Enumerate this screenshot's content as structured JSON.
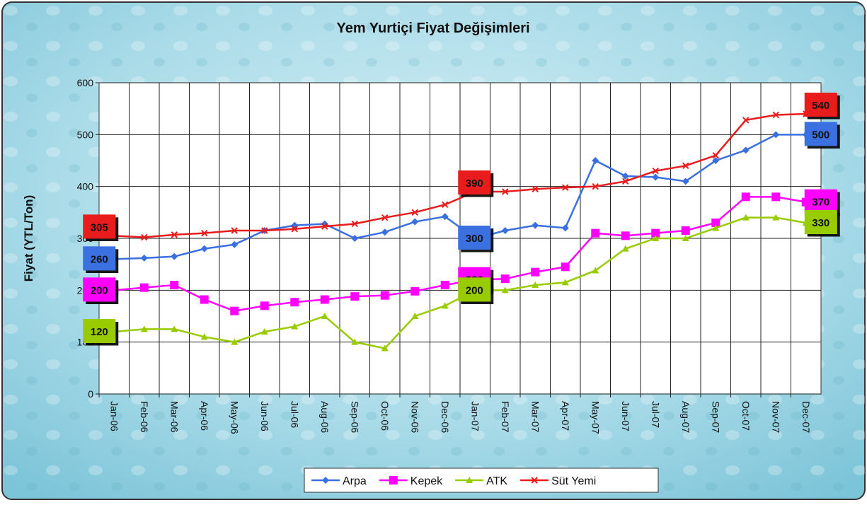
{
  "chart_data": {
    "type": "line",
    "title": "Yem Yurtiçi Fiyat Değişimleri",
    "y_label": "Fiyat (YTL/Ton)",
    "categories": [
      "Jan-06",
      "Feb-06",
      "Mar-06",
      "Apr-06",
      "May-06",
      "Jun-06",
      "Jul-06",
      "Aug-06",
      "Sep-06",
      "Oct-06",
      "Nov-06",
      "Dec-06",
      "Jan-07",
      "Feb-07",
      "Mar-07",
      "Apr-07",
      "May-07",
      "Jun-07",
      "Jul-07",
      "Aug-07",
      "Sep-07",
      "Oct-07",
      "Nov-07",
      "Dec-07"
    ],
    "series": [
      {
        "name": "Arpa",
        "color": "#3a6fe0",
        "marker": "diamond",
        "values": [
          260,
          262,
          265,
          280,
          288,
          315,
          325,
          328,
          300,
          312,
          332,
          342,
          300,
          315,
          325,
          320,
          450,
          420,
          418,
          410,
          450,
          470,
          500,
          500
        ]
      },
      {
        "name": "Kepek",
        "color": "#ff00ff",
        "marker": "square",
        "values": [
          200,
          205,
          210,
          182,
          160,
          170,
          177,
          182,
          188,
          190,
          198,
          210,
          220,
          222,
          235,
          245,
          310,
          305,
          310,
          315,
          330,
          380,
          380,
          370
        ]
      },
      {
        "name": "ATK",
        "color": "#99cc00",
        "marker": "triangle",
        "values": [
          120,
          125,
          125,
          110,
          100,
          120,
          130,
          150,
          100,
          88,
          150,
          170,
          200,
          200,
          210,
          215,
          238,
          280,
          300,
          300,
          320,
          340,
          340,
          330
        ]
      },
      {
        "name": "Süt Yemi",
        "color": "#e81c1c",
        "marker": "x",
        "values": [
          305,
          302,
          307,
          310,
          315,
          315,
          318,
          323,
          328,
          340,
          350,
          365,
          390,
          390,
          395,
          398,
          400,
          410,
          430,
          440,
          460,
          528,
          538,
          540
        ]
      }
    ],
    "ylim": [
      0,
      600
    ],
    "yticks": [
      0,
      100,
      200,
      300,
      400,
      500,
      600
    ],
    "grid": true,
    "legend": "bottom"
  }
}
